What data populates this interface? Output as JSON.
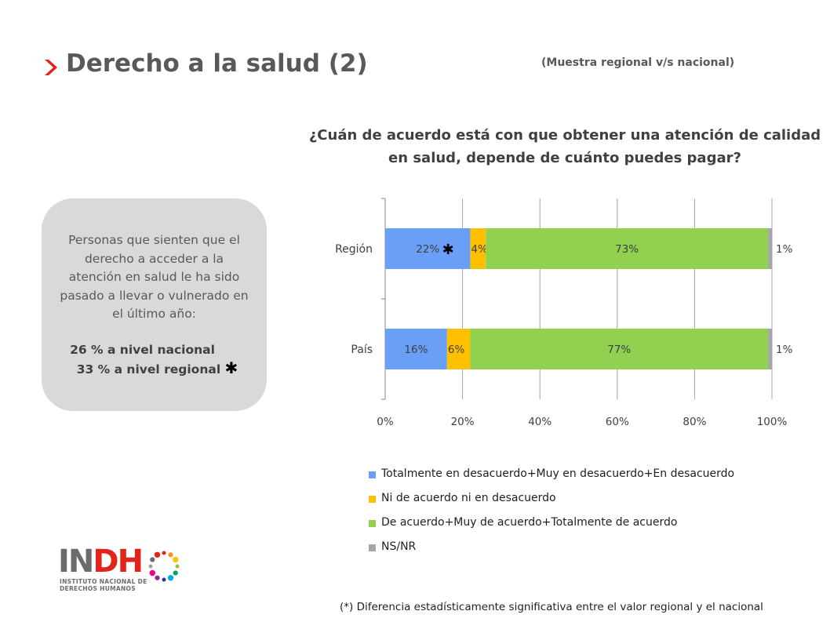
{
  "header": {
    "title": "Derecho a la salud (2)",
    "subtitle": "(Muestra regional v/s nacional)"
  },
  "question": "¿Cuán de acuerdo está con que obtener una atención de calidad en salud, depende de cuánto puedes pagar?",
  "info_box": {
    "text": "Personas que sienten que el derecho a acceder a la atención en salud le ha sido pasado a llevar o vulnerado en el último año:",
    "stat_national": "26 % a nivel nacional",
    "stat_regional": "33 % a nivel regional",
    "marker": "✱"
  },
  "colors": {
    "title_chevron": "#e2231a",
    "series": [
      "#6a9ff7",
      "#ffc000",
      "#92d050",
      "#a6a6a6"
    ]
  },
  "chart_data": {
    "type": "bar",
    "orientation": "horizontal",
    "stacked": true,
    "categories": [
      "Región",
      "País"
    ],
    "series": [
      {
        "name": "Totalmente en desacuerdo+Muy en desacuerdo+En desacuerdo",
        "values": [
          22,
          16
        ]
      },
      {
        "name": "Ni de acuerdo ni en desacuerdo",
        "values": [
          4,
          6
        ]
      },
      {
        "name": "De acuerdo+Muy de acuerdo+Totalmente de acuerdo",
        "values": [
          73,
          77
        ]
      },
      {
        "name": "NS/NR",
        "values": [
          1,
          1
        ]
      }
    ],
    "data_labels": [
      [
        "22%",
        "4%",
        "73%",
        "1%"
      ],
      [
        "16%",
        "6%",
        "77%",
        "1%"
      ]
    ],
    "significance_marker": {
      "category": "Región",
      "series": 0,
      "symbol": "✱"
    },
    "xlim": [
      0,
      100
    ],
    "xticks": [
      "0%",
      "20%",
      "40%",
      "60%",
      "80%",
      "100%"
    ],
    "xtick_values": [
      0,
      20,
      40,
      60,
      80,
      100
    ],
    "grid": true,
    "legend": "bottom"
  },
  "logo": {
    "letters_1": "IN",
    "letters_2": "DH",
    "line_1": "INSTITUTO NACIONAL DE",
    "line_2": "DERECHOS HUMANOS",
    "dot_colors": [
      "#e2231a",
      "#f7941d",
      "#ffc20e",
      "#8dc63f",
      "#00a651",
      "#00aeef",
      "#2e3192",
      "#92278f",
      "#ec008c",
      "#a0a0a0",
      "#6b6b6b",
      "#e2231a"
    ]
  },
  "footnote": "(*) Diferencia estadísticamente significativa entre el valor regional y el nacional"
}
